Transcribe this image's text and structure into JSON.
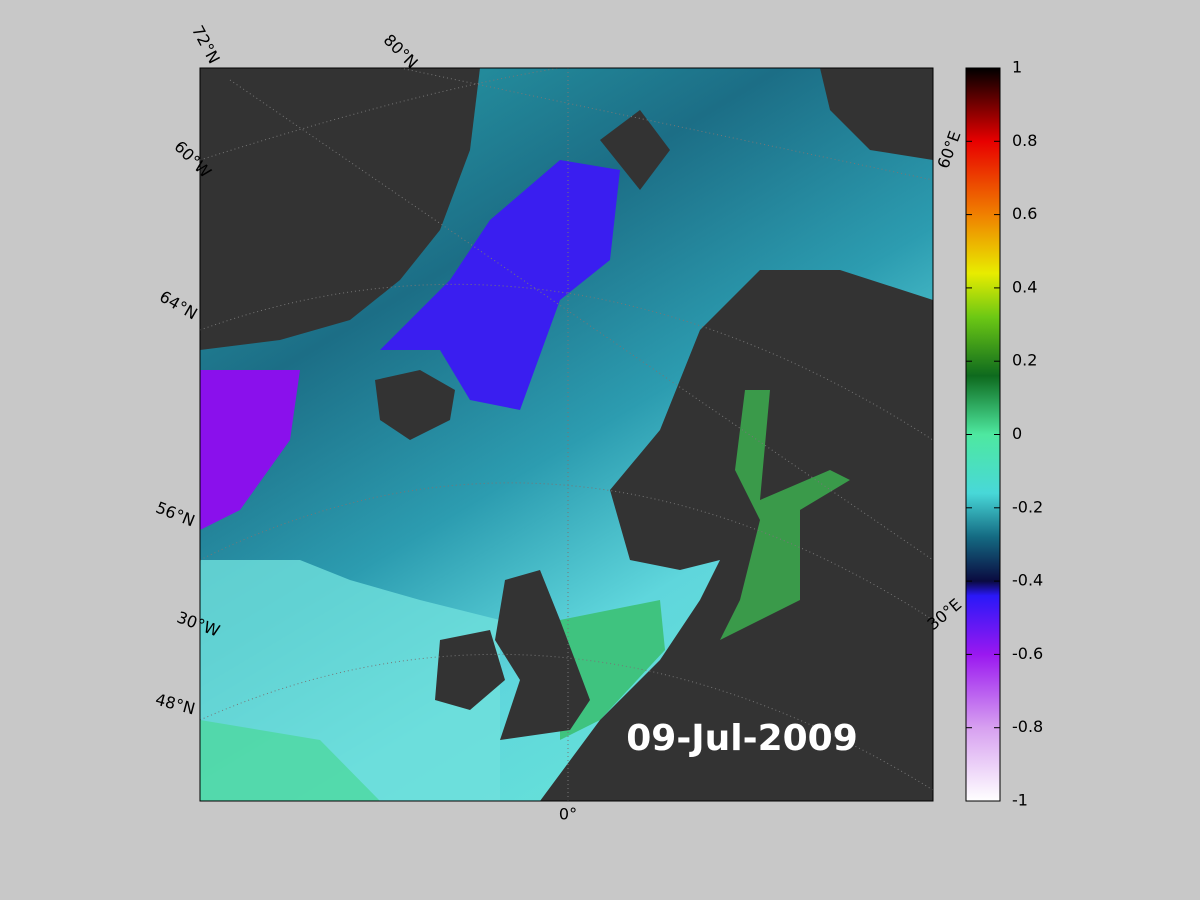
{
  "map": {
    "date": "09-Jul-2009",
    "labels": [
      "72°N",
      "80°N",
      "60°W",
      "64°N",
      "56°N",
      "30°W",
      "48°N",
      "0°",
      "60°E",
      "30°E"
    ]
  },
  "colorbar": {
    "lim": [
      -1,
      1
    ],
    "ticks": [
      1,
      0.8,
      0.6,
      0.4,
      0.2,
      0,
      -0.2,
      -0.4,
      -0.6,
      -0.8,
      -1
    ]
  }
}
